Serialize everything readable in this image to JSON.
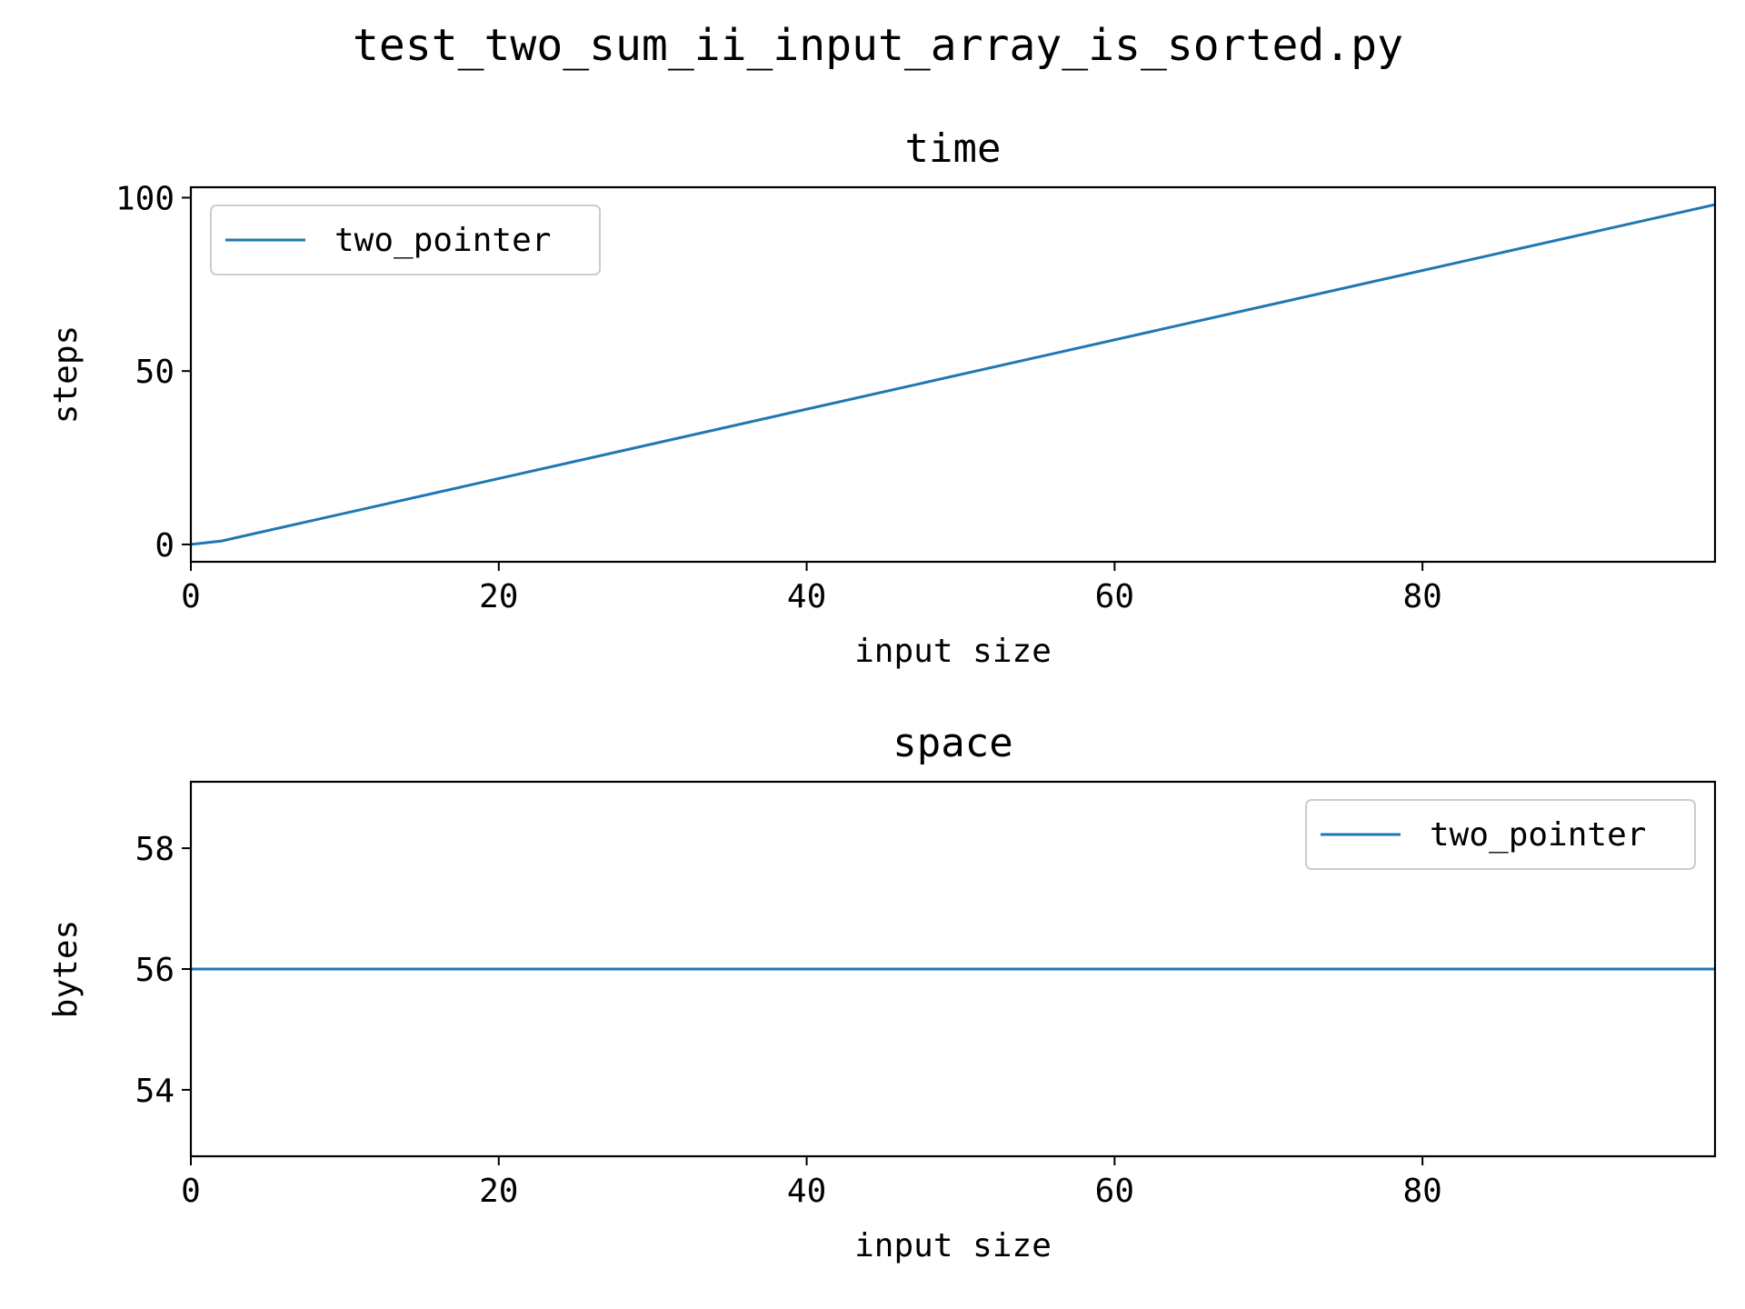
{
  "figure": {
    "suptitle": "test_two_sum_ii_input_array_is_sorted.py"
  },
  "chart_data": [
    {
      "type": "line",
      "title": "time",
      "xlabel": "input size",
      "ylabel": "steps",
      "xlim": [
        0,
        99
      ],
      "ylim": [
        -5,
        103
      ],
      "xticks": [
        0,
        20,
        40,
        60,
        80
      ],
      "yticks": [
        0,
        50,
        100
      ],
      "grid": false,
      "legend": "upper-left",
      "series": [
        {
          "name": "two_pointer",
          "color": "#1f77b4",
          "x": [
            0,
            2,
            99
          ],
          "y": [
            0,
            1,
            98
          ]
        }
      ]
    },
    {
      "type": "line",
      "title": "space",
      "xlabel": "input size",
      "ylabel": "bytes",
      "xlim": [
        0,
        99
      ],
      "ylim": [
        52.9,
        59.1
      ],
      "xticks": [
        0,
        20,
        40,
        60,
        80
      ],
      "yticks": [
        54,
        56,
        58
      ],
      "grid": false,
      "legend": "upper-right",
      "series": [
        {
          "name": "two_pointer",
          "color": "#1f77b4",
          "x": [
            0,
            99
          ],
          "y": [
            56,
            56
          ]
        }
      ]
    }
  ]
}
